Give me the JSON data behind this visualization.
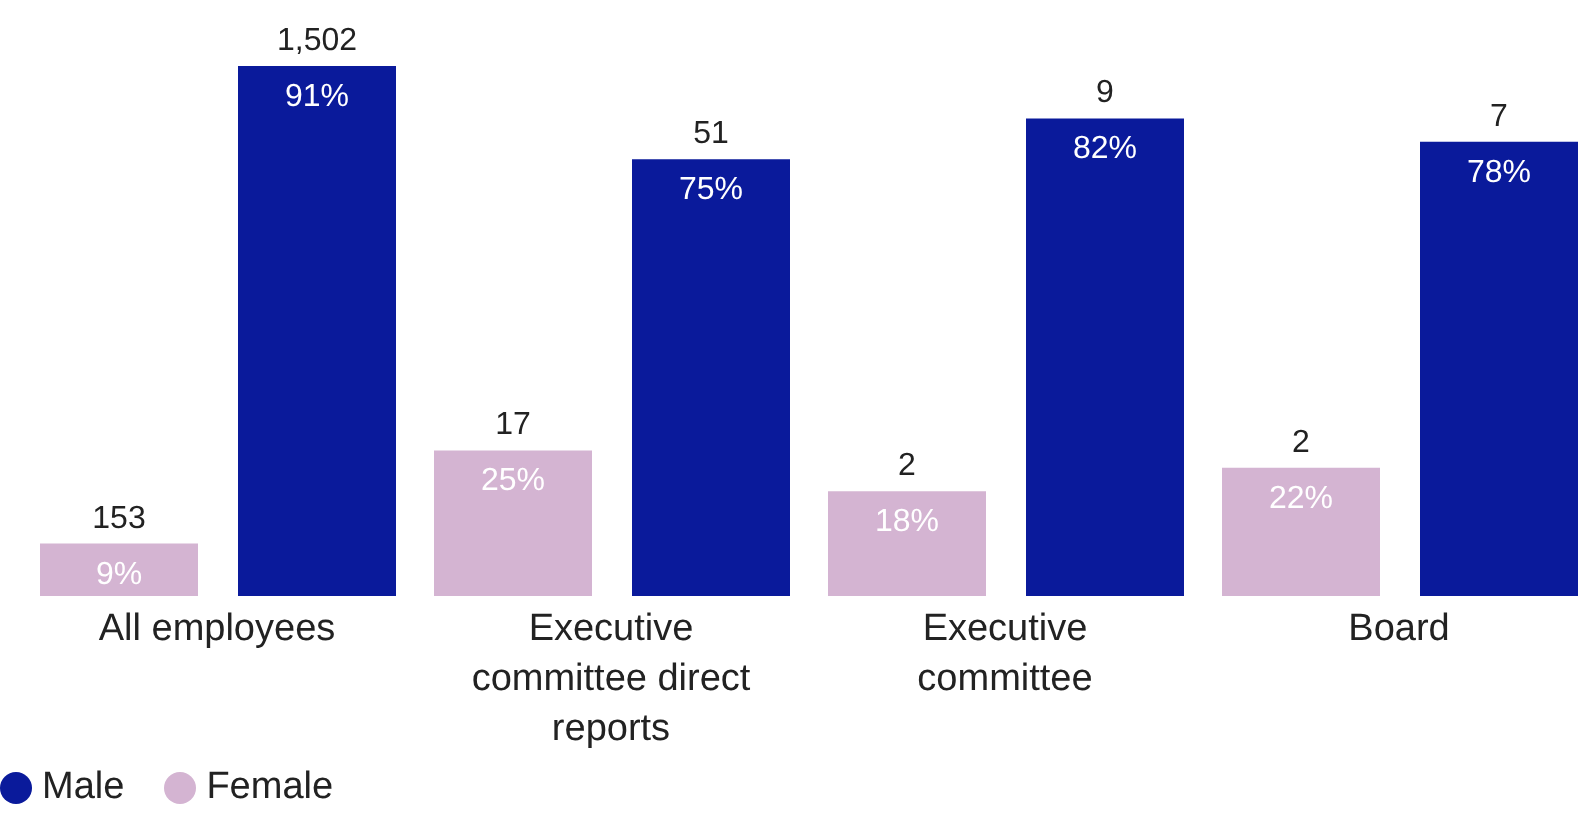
{
  "chart_data": {
    "type": "bar",
    "categories": [
      "All employees",
      "Executive committee direct reports",
      "Executive committee",
      "Board"
    ],
    "series": [
      {
        "name": "Female",
        "color": "#d4b4d2",
        "values": [
          9,
          25,
          18,
          22
        ],
        "value_labels": [
          "9%",
          "25%",
          "18%",
          "22%"
        ]
      },
      {
        "name": "Male",
        "color": "#0a1a9b",
        "values": [
          91,
          75,
          82,
          78
        ],
        "value_labels": [
          "91%",
          "75%",
          "82%",
          "78%"
        ]
      }
    ],
    "annotations": [
      "153",
      "1,502",
      "17",
      "51",
      "2",
      "9",
      "2",
      "7"
    ],
    "legend": "bottom left"
  }
}
